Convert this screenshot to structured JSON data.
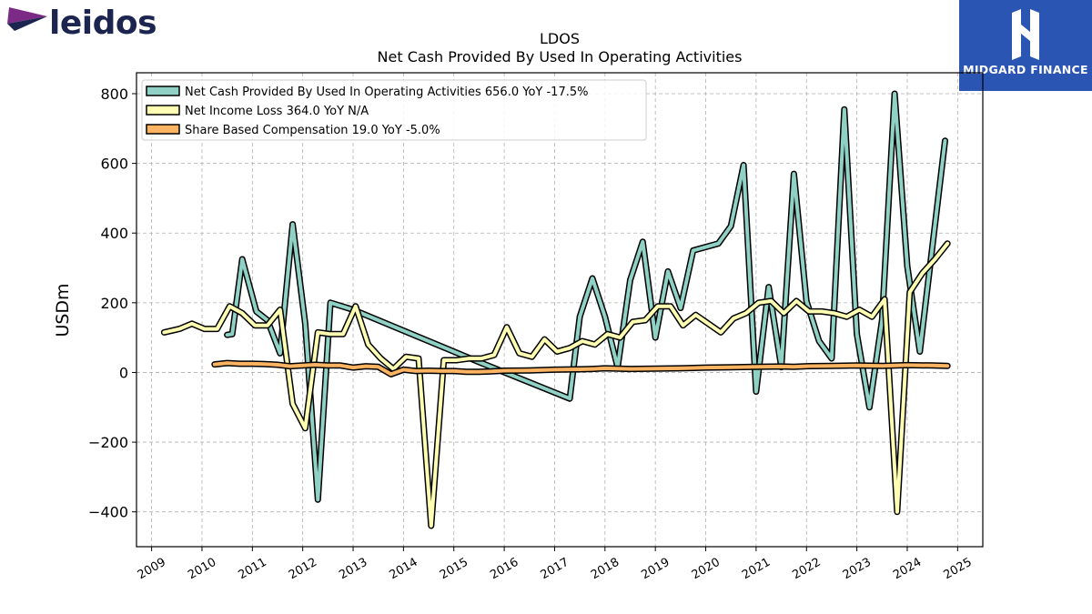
{
  "logos": {
    "left_brand": "leidos",
    "right_brand": "MIDGARD FINANCE"
  },
  "colors": {
    "net_cash": "#8fd1c4",
    "net_income": "#ffffb3",
    "sbc": "#fdb462",
    "leidos_navy": "#1c2550",
    "leidos_purple": "#7b2a86",
    "midgard_blue": "#2b55b3"
  },
  "chart_data": {
    "type": "line",
    "title": "LDOS",
    "subtitle": "Net Cash Provided By Used In Operating Activities",
    "xlabel": "",
    "ylabel": "USDm",
    "xlim": [
      2008.7,
      2025.5
    ],
    "ylim": [
      -500,
      860
    ],
    "x_ticks": [
      "2009",
      "2010",
      "2011",
      "2012",
      "2013",
      "2014",
      "2015",
      "2016",
      "2017",
      "2018",
      "2019",
      "2020",
      "2021",
      "2022",
      "2023",
      "2024",
      "2025"
    ],
    "y_ticks": [
      800,
      600,
      400,
      200,
      0,
      -200,
      -400
    ],
    "y_tick_labels": [
      "800",
      "600",
      "400",
      "200",
      "0",
      "−200",
      "−400"
    ],
    "grid": true,
    "legend_position": "top-left",
    "series": [
      {
        "name": "Net Cash Provided By Used In Operating Activities  656.0 YoY -17.5%",
        "color": "#8fd1c4",
        "points": [
          [
            2010.5,
            108
          ],
          [
            2010.6,
            110
          ],
          [
            2010.8,
            325
          ],
          [
            2011.08,
            175
          ],
          [
            2011.3,
            150
          ],
          [
            2011.55,
            55
          ],
          [
            2011.8,
            425
          ],
          [
            2012.05,
            140
          ],
          [
            2012.3,
            -365
          ],
          [
            2012.55,
            200
          ],
          [
            2013.0,
            180
          ],
          [
            2015.5,
            30
          ],
          [
            2017.3,
            -75
          ],
          [
            2017.5,
            160
          ],
          [
            2017.75,
            270
          ],
          [
            2018.0,
            160
          ],
          [
            2018.25,
            15
          ],
          [
            2018.5,
            265
          ],
          [
            2018.75,
            375
          ],
          [
            2019.0,
            100
          ],
          [
            2019.25,
            290
          ],
          [
            2019.5,
            185
          ],
          [
            2019.75,
            350
          ],
          [
            2020.25,
            370
          ],
          [
            2020.5,
            420
          ],
          [
            2020.75,
            595
          ],
          [
            2021.0,
            -55
          ],
          [
            2021.25,
            245
          ],
          [
            2021.5,
            15
          ],
          [
            2021.75,
            570
          ],
          [
            2022.0,
            205
          ],
          [
            2022.25,
            90
          ],
          [
            2022.5,
            40
          ],
          [
            2022.75,
            755
          ],
          [
            2023.0,
            110
          ],
          [
            2023.25,
            -100
          ],
          [
            2023.5,
            150
          ],
          [
            2023.75,
            800
          ],
          [
            2024.0,
            305
          ],
          [
            2024.25,
            60
          ],
          [
            2024.75,
            665
          ]
        ]
      },
      {
        "name": "Net Income Loss  364.0 YoY N/A",
        "color": "#ffffb3",
        "points": [
          [
            2009.25,
            115
          ],
          [
            2009.55,
            125
          ],
          [
            2009.8,
            140
          ],
          [
            2010.05,
            125
          ],
          [
            2010.3,
            125
          ],
          [
            2010.55,
            190
          ],
          [
            2010.8,
            170
          ],
          [
            2011.05,
            135
          ],
          [
            2011.3,
            135
          ],
          [
            2011.55,
            180
          ],
          [
            2011.8,
            -90
          ],
          [
            2012.05,
            -160
          ],
          [
            2012.3,
            115
          ],
          [
            2012.55,
            110
          ],
          [
            2012.8,
            110
          ],
          [
            2013.05,
            190
          ],
          [
            2013.3,
            80
          ],
          [
            2013.55,
            40
          ],
          [
            2013.8,
            10
          ],
          [
            2014.05,
            45
          ],
          [
            2014.3,
            40
          ],
          [
            2014.55,
            -440
          ],
          [
            2014.8,
            35
          ],
          [
            2015.05,
            35
          ],
          [
            2015.3,
            40
          ],
          [
            2015.55,
            40
          ],
          [
            2015.8,
            50
          ],
          [
            2016.05,
            130
          ],
          [
            2016.3,
            55
          ],
          [
            2016.55,
            45
          ],
          [
            2016.8,
            95
          ],
          [
            2017.05,
            60
          ],
          [
            2017.3,
            70
          ],
          [
            2017.55,
            90
          ],
          [
            2017.8,
            80
          ],
          [
            2018.05,
            110
          ],
          [
            2018.3,
            100
          ],
          [
            2018.55,
            145
          ],
          [
            2018.8,
            150
          ],
          [
            2019.05,
            190
          ],
          [
            2019.3,
            190
          ],
          [
            2019.55,
            135
          ],
          [
            2019.8,
            165
          ],
          [
            2020.05,
            140
          ],
          [
            2020.3,
            115
          ],
          [
            2020.55,
            155
          ],
          [
            2020.8,
            170
          ],
          [
            2021.05,
            200
          ],
          [
            2021.3,
            205
          ],
          [
            2021.55,
            170
          ],
          [
            2021.8,
            205
          ],
          [
            2022.05,
            175
          ],
          [
            2022.3,
            175
          ],
          [
            2022.55,
            170
          ],
          [
            2022.8,
            160
          ],
          [
            2023.05,
            180
          ],
          [
            2023.3,
            160
          ],
          [
            2023.55,
            210
          ],
          [
            2023.8,
            -400
          ],
          [
            2024.05,
            230
          ],
          [
            2024.3,
            285
          ],
          [
            2024.55,
            325
          ],
          [
            2024.8,
            370
          ]
        ]
      },
      {
        "name": "Share Based Compensation  19.0 YoY -5.0%",
        "color": "#fdb462",
        "points": [
          [
            2010.25,
            23
          ],
          [
            2010.5,
            27
          ],
          [
            2010.75,
            25
          ],
          [
            2011.0,
            25
          ],
          [
            2011.25,
            24
          ],
          [
            2011.5,
            22
          ],
          [
            2011.75,
            18
          ],
          [
            2012.0,
            20
          ],
          [
            2012.25,
            22
          ],
          [
            2012.5,
            20
          ],
          [
            2012.75,
            20
          ],
          [
            2013.0,
            14
          ],
          [
            2013.25,
            18
          ],
          [
            2013.5,
            16
          ],
          [
            2013.75,
            -5
          ],
          [
            2014.0,
            8
          ],
          [
            2014.25,
            4
          ],
          [
            2014.5,
            5
          ],
          [
            2014.75,
            4
          ],
          [
            2015.0,
            4
          ],
          [
            2015.25,
            2
          ],
          [
            2015.5,
            2
          ],
          [
            2015.75,
            3
          ],
          [
            2016.0,
            5
          ],
          [
            2016.5,
            6
          ],
          [
            2017.0,
            8
          ],
          [
            2017.5,
            9
          ],
          [
            2017.75,
            10
          ],
          [
            2018.0,
            12
          ],
          [
            2018.5,
            10
          ],
          [
            2019.0,
            11
          ],
          [
            2019.5,
            12
          ],
          [
            2020.0,
            14
          ],
          [
            2020.5,
            15
          ],
          [
            2021.0,
            16
          ],
          [
            2021.5,
            17
          ],
          [
            2021.75,
            16
          ],
          [
            2022.0,
            18
          ],
          [
            2022.5,
            19
          ],
          [
            2023.0,
            20
          ],
          [
            2023.5,
            19
          ],
          [
            2024.0,
            21
          ],
          [
            2024.5,
            20
          ],
          [
            2024.8,
            19
          ]
        ]
      }
    ]
  }
}
